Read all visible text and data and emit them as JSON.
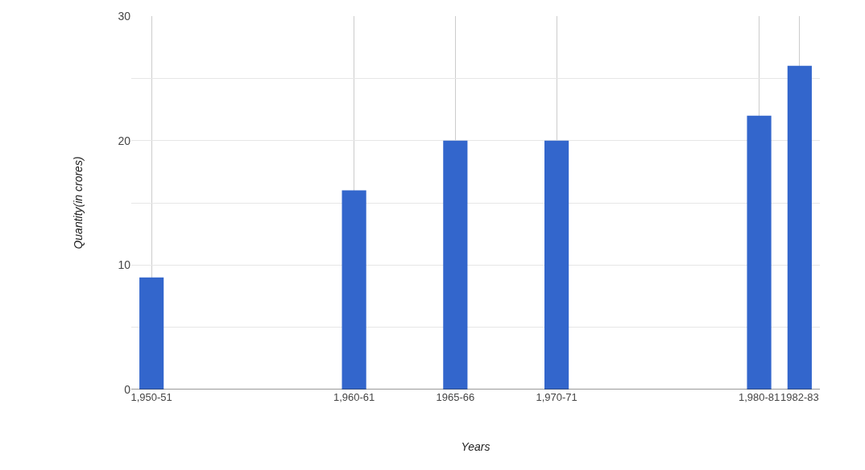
{
  "chart_data": {
    "type": "bar",
    "categories": [
      "1,950-51",
      null,
      null,
      null,
      null,
      null,
      null,
      null,
      null,
      null,
      "1,960-61",
      null,
      null,
      null,
      null,
      "1965-66",
      null,
      null,
      null,
      null,
      "1,970-71",
      null,
      null,
      null,
      null,
      null,
      null,
      null,
      null,
      null,
      "1,980-81",
      null,
      "1982-83"
    ],
    "values": [
      9,
      null,
      null,
      null,
      null,
      null,
      null,
      null,
      null,
      null,
      16,
      null,
      null,
      null,
      null,
      20,
      null,
      null,
      null,
      null,
      20,
      null,
      null,
      null,
      null,
      null,
      null,
      null,
      null,
      null,
      22,
      null,
      26
    ],
    "color": "#3366cc",
    "xlabel": "Years",
    "ylabel": "Quantity(in crores)",
    "ylim": [
      0,
      30
    ],
    "yticks": [
      0,
      {
        "value": 5,
        "label": null
      },
      10,
      {
        "value": 15,
        "label": null
      },
      20,
      {
        "value": 25,
        "label": null
      },
      30
    ],
    "grid": true
  }
}
